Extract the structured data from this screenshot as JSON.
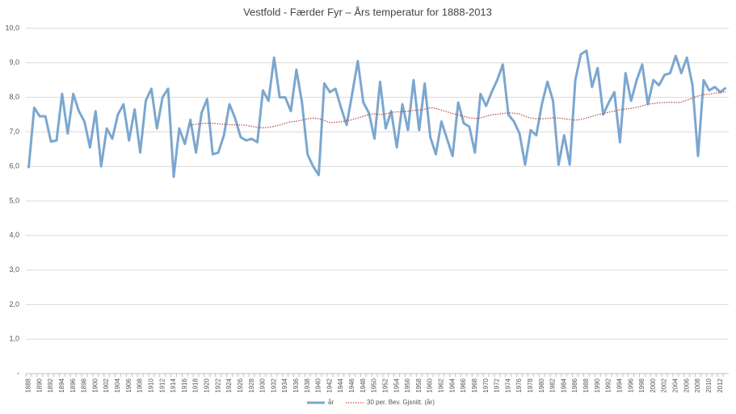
{
  "chart_data": {
    "type": "line",
    "title": "Vestfold - Færder Fyr – Års temperatur for 1888-2013",
    "categories": [
      "1888",
      null,
      "1890",
      null,
      "1892",
      null,
      "1894",
      null,
      "1896",
      null,
      "1898",
      null,
      "1900",
      null,
      "1902",
      null,
      "1904",
      null,
      "1906",
      null,
      "1908",
      null,
      "1910",
      null,
      "1912",
      null,
      "1914",
      null,
      "1916",
      null,
      "1918",
      null,
      "1920",
      null,
      "1922",
      null,
      "1924",
      null,
      "1926",
      null,
      "1928",
      null,
      "1930",
      null,
      "1932",
      null,
      "1934",
      null,
      "1936",
      null,
      "1938",
      null,
      "1940",
      null,
      "1942",
      null,
      "1944",
      null,
      "1946",
      null,
      "1948",
      null,
      "1950",
      null,
      "1952",
      null,
      "1954",
      null,
      "1956",
      null,
      "1958",
      null,
      "1960",
      null,
      "1962",
      null,
      "1964",
      null,
      "1966",
      null,
      "1968",
      null,
      "1970",
      null,
      "1972",
      null,
      "1974",
      null,
      "1976",
      null,
      "1978",
      null,
      "1980",
      null,
      "1982",
      null,
      "1984",
      null,
      "1986",
      null,
      "1988",
      null,
      "1990",
      null,
      "1992",
      null,
      "1994",
      null,
      "1996",
      null,
      "1998",
      null,
      "2000",
      null,
      "2002",
      null,
      "2004",
      null,
      "2006",
      null,
      "2008",
      null,
      "2010",
      null,
      "2012",
      null
    ],
    "series": [
      {
        "name": "år",
        "color": "#7ba7cf",
        "style": "solid",
        "values": [
          5.95,
          7.7,
          7.45,
          7.45,
          6.72,
          6.75,
          8.1,
          6.95,
          8.1,
          7.6,
          7.3,
          6.55,
          7.6,
          6.0,
          7.1,
          6.8,
          7.5,
          7.8,
          6.75,
          7.65,
          6.4,
          7.9,
          8.25,
          7.1,
          8.0,
          8.25,
          5.7,
          7.1,
          6.65,
          7.35,
          6.4,
          7.55,
          7.95,
          6.35,
          6.4,
          6.9,
          7.8,
          7.4,
          6.85,
          6.75,
          6.8,
          6.7,
          8.2,
          7.9,
          9.15,
          8.0,
          8.0,
          7.6,
          8.8,
          7.85,
          6.35,
          6.0,
          5.75,
          8.4,
          8.15,
          8.25,
          7.7,
          7.2,
          8.1,
          9.05,
          7.85,
          7.55,
          6.8,
          8.45,
          7.1,
          7.6,
          6.55,
          7.8,
          7.05,
          8.5,
          7.05,
          8.4,
          6.85,
          6.35,
          7.3,
          6.8,
          6.3,
          7.85,
          7.25,
          7.15,
          6.4,
          8.1,
          7.75,
          8.15,
          8.5,
          8.95,
          7.5,
          7.3,
          6.95,
          6.05,
          7.05,
          6.9,
          7.8,
          8.45,
          7.9,
          6.05,
          6.9,
          6.05,
          8.5,
          9.25,
          9.35,
          8.3,
          8.85,
          7.5,
          7.85,
          8.15,
          6.7,
          8.7,
          7.9,
          8.5,
          8.95,
          7.8,
          8.5,
          8.35,
          8.65,
          8.7,
          9.2,
          8.7,
          9.15,
          8.35,
          6.3,
          8.5,
          8.2,
          8.3,
          8.15,
          8.28
        ]
      },
      {
        "name": "30 per. Bev. Gjsnitt. (år)",
        "color": "#c0504d",
        "style": "dotted",
        "values": [
          null,
          null,
          null,
          null,
          null,
          null,
          null,
          null,
          null,
          null,
          null,
          null,
          null,
          null,
          null,
          null,
          null,
          null,
          null,
          null,
          null,
          null,
          null,
          null,
          null,
          null,
          null,
          null,
          null,
          7.2,
          7.22,
          7.24,
          7.25,
          7.25,
          7.23,
          7.22,
          7.21,
          7.2,
          7.2,
          7.19,
          7.16,
          7.13,
          7.12,
          7.13,
          7.16,
          7.2,
          7.25,
          7.29,
          7.31,
          7.34,
          7.38,
          7.4,
          7.38,
          7.33,
          7.27,
          7.28,
          7.29,
          7.32,
          7.35,
          7.4,
          7.45,
          7.5,
          7.52,
          7.5,
          7.52,
          7.56,
          7.58,
          7.58,
          7.6,
          7.62,
          7.63,
          7.66,
          7.7,
          7.68,
          7.63,
          7.58,
          7.53,
          7.49,
          7.45,
          7.41,
          7.39,
          7.4,
          7.45,
          7.5,
          7.51,
          7.53,
          7.55,
          7.54,
          7.52,
          7.45,
          7.4,
          7.38,
          7.38,
          7.39,
          7.41,
          7.4,
          7.38,
          7.36,
          7.34,
          7.36,
          7.4,
          7.45,
          7.5,
          7.53,
          7.57,
          7.6,
          7.64,
          7.66,
          7.68,
          7.71,
          7.75,
          7.8,
          7.82,
          7.84,
          7.85,
          7.86,
          7.85,
          7.86,
          7.92,
          7.98,
          8.04,
          8.08,
          8.09,
          8.12,
          8.14,
          8.16
        ]
      }
    ],
    "ylim": [
      0,
      10
    ],
    "yticks": [
      {
        "value": 0,
        "label": "-"
      },
      {
        "value": 1,
        "label": "1,0"
      },
      {
        "value": 2,
        "label": "2,0"
      },
      {
        "value": 3,
        "label": "3,0"
      },
      {
        "value": 4,
        "label": "4,0"
      },
      {
        "value": 5,
        "label": "5,0"
      },
      {
        "value": 6,
        "label": "6,0"
      },
      {
        "value": 7,
        "label": "7,0"
      },
      {
        "value": 8,
        "label": "8,0"
      },
      {
        "value": 9,
        "label": "9,0"
      },
      {
        "value": 10,
        "label": "10,0"
      }
    ],
    "grid": true,
    "legend": "bottom"
  }
}
